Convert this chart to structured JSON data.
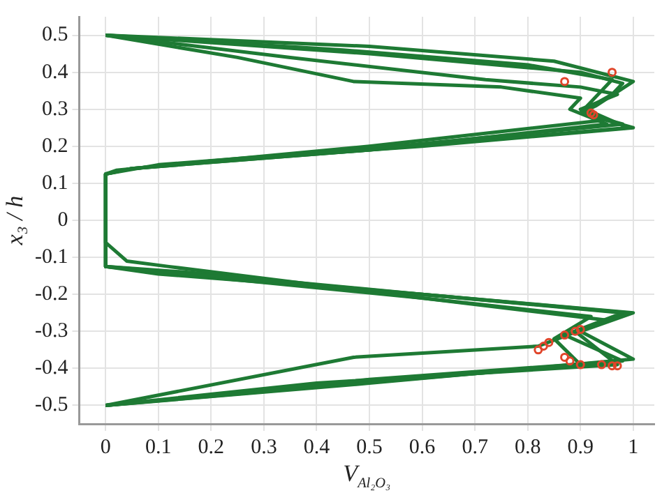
{
  "chart_data": {
    "type": "line",
    "xlabel": "V$_{Al₂O₃}$",
    "ylabel": "x₃ / h",
    "xlim": [
      -0.05,
      1.04
    ],
    "ylim": [
      -0.55,
      0.55
    ],
    "xticks": [
      0,
      0.1,
      0.2,
      0.3,
      0.4,
      0.5,
      0.6,
      0.7,
      0.8,
      0.9,
      1
    ],
    "yticks": [
      -0.5,
      -0.4,
      -0.3,
      -0.2,
      -0.1,
      0,
      0.1,
      0.2,
      0.3,
      0.4,
      0.5
    ],
    "grid": true,
    "line_style": "solid",
    "series": [
      {
        "type": "line",
        "color": "#1e7a34",
        "x": [
          0,
          0.5,
          0.85,
          1,
          0.93,
          0.9,
          1,
          0.6,
          0.2,
          0.02,
          0,
          0,
          0.2,
          0.6,
          1,
          0.9,
          1,
          0.5,
          0
        ],
        "values": [
          0.5,
          0.47,
          0.43,
          0.375,
          0.31,
          0.29,
          0.25,
          0.2,
          0.16,
          0.135,
          0.125,
          -0.125,
          -0.15,
          -0.2,
          -0.25,
          -0.3,
          -0.375,
          -0.44,
          -0.5
        ]
      },
      {
        "type": "line",
        "color": "#1e7a34",
        "x": [
          0,
          0.45,
          0.8,
          0.96,
          0.92,
          0.9,
          0.98,
          0.55,
          0.1,
          0,
          0,
          0.15,
          0.6,
          0.98,
          0.87,
          0.98,
          0.5,
          0
        ],
        "values": [
          0.5,
          0.46,
          0.42,
          0.38,
          0.32,
          0.29,
          0.26,
          0.2,
          0.15,
          0.125,
          -0.125,
          -0.14,
          -0.2,
          -0.25,
          -0.31,
          -0.38,
          -0.43,
          -0.5
        ]
      },
      {
        "type": "line",
        "color": "#1e7a34",
        "x": [
          0,
          0.25,
          0.47,
          0.75,
          0.9,
          0.88,
          0.95,
          0.5,
          0.05,
          0,
          0,
          0.04,
          0.12,
          0.6,
          0.95,
          0.82,
          0.47,
          0
        ],
        "values": [
          0.5,
          0.44,
          0.375,
          0.36,
          0.33,
          0.3,
          0.26,
          0.19,
          0.14,
          0.125,
          -0.06,
          -0.11,
          -0.125,
          -0.21,
          -0.27,
          -0.34,
          -0.37,
          -0.5
        ]
      },
      {
        "type": "line",
        "color": "#1e7a34",
        "x": [
          0,
          0.35,
          0.72,
          0.9,
          0.97,
          0.9,
          0.94,
          0.5,
          0.05,
          0,
          0,
          0.1,
          0.6,
          0.92,
          0.85,
          0.9,
          0.4,
          0
        ],
        "values": [
          0.5,
          0.44,
          0.38,
          0.36,
          0.34,
          0.3,
          0.27,
          0.2,
          0.14,
          0.125,
          -0.125,
          -0.14,
          -0.21,
          -0.26,
          -0.32,
          -0.39,
          -0.45,
          -0.5
        ]
      },
      {
        "type": "line",
        "color": "#1e7a34",
        "x": [
          0,
          0.5,
          0.9,
          0.98,
          0.96,
          0.91,
          0.99,
          0.5,
          0.05,
          0,
          0,
          0.1,
          0.6,
          0.99,
          0.89,
          0.97,
          0.4,
          0
        ],
        "values": [
          0.5,
          0.45,
          0.4,
          0.37,
          0.34,
          0.3,
          0.25,
          0.19,
          0.14,
          0.125,
          -0.125,
          -0.145,
          -0.2,
          -0.25,
          -0.3,
          -0.39,
          -0.44,
          -0.5
        ]
      },
      {
        "type": "scatter",
        "color": "#e0452a",
        "x": [
          0.96,
          0.87,
          0.92,
          0.925,
          0.82,
          0.83,
          0.84,
          0.87,
          0.89,
          0.9,
          0.87,
          0.88,
          0.9,
          0.94,
          0.96,
          0.97
        ],
        "values": [
          0.4,
          0.375,
          0.29,
          0.285,
          -0.35,
          -0.34,
          -0.33,
          -0.31,
          -0.3,
          -0.295,
          -0.37,
          -0.38,
          -0.39,
          -0.39,
          -0.393,
          -0.393
        ]
      }
    ]
  }
}
